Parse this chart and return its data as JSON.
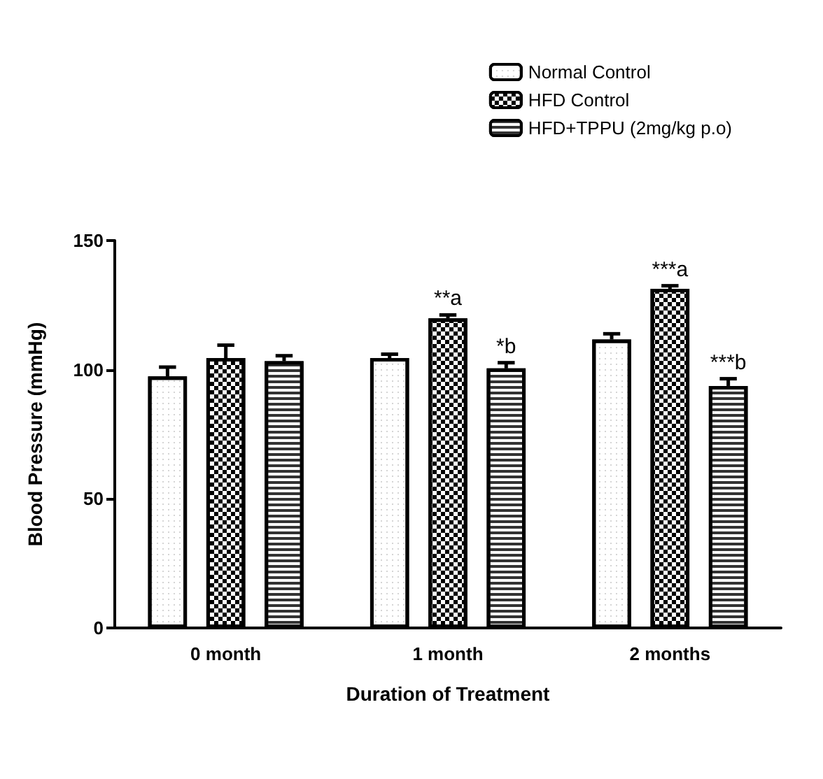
{
  "chart_data": {
    "type": "bar",
    "categories": [
      "0 month",
      "1 month",
      "2 months"
    ],
    "xlabel": "Duration of Treatment",
    "ylabel": "Blood Pressure (mmHg)",
    "ylim": [
      0,
      150
    ],
    "yticks": [
      0,
      50,
      100,
      150
    ],
    "grid": false,
    "legend": "top right",
    "series": [
      {
        "name": "Normal Control",
        "color": "#ffffff",
        "values": [
          97.4,
          104.5,
          111.7
        ],
        "errors": [
          3.6,
          1.5,
          2.2
        ],
        "value_labels": [
          null,
          null,
          null
        ]
      },
      {
        "name": "HFD Control",
        "color": "#ffffff",
        "values": [
          104.5,
          119.9,
          131.3
        ],
        "errors": [
          5,
          1.3,
          1.2
        ],
        "value_labels": [
          null,
          "**a",
          "***a"
        ]
      },
      {
        "name": "HFD+TPPU (2mg/kg p.o)",
        "color": "#ffffff",
        "values": [
          103.3,
          100.5,
          93.7
        ],
        "errors": [
          2.1,
          2.2,
          2.8
        ],
        "value_labels": [
          null,
          "*b",
          "***b"
        ]
      }
    ]
  }
}
